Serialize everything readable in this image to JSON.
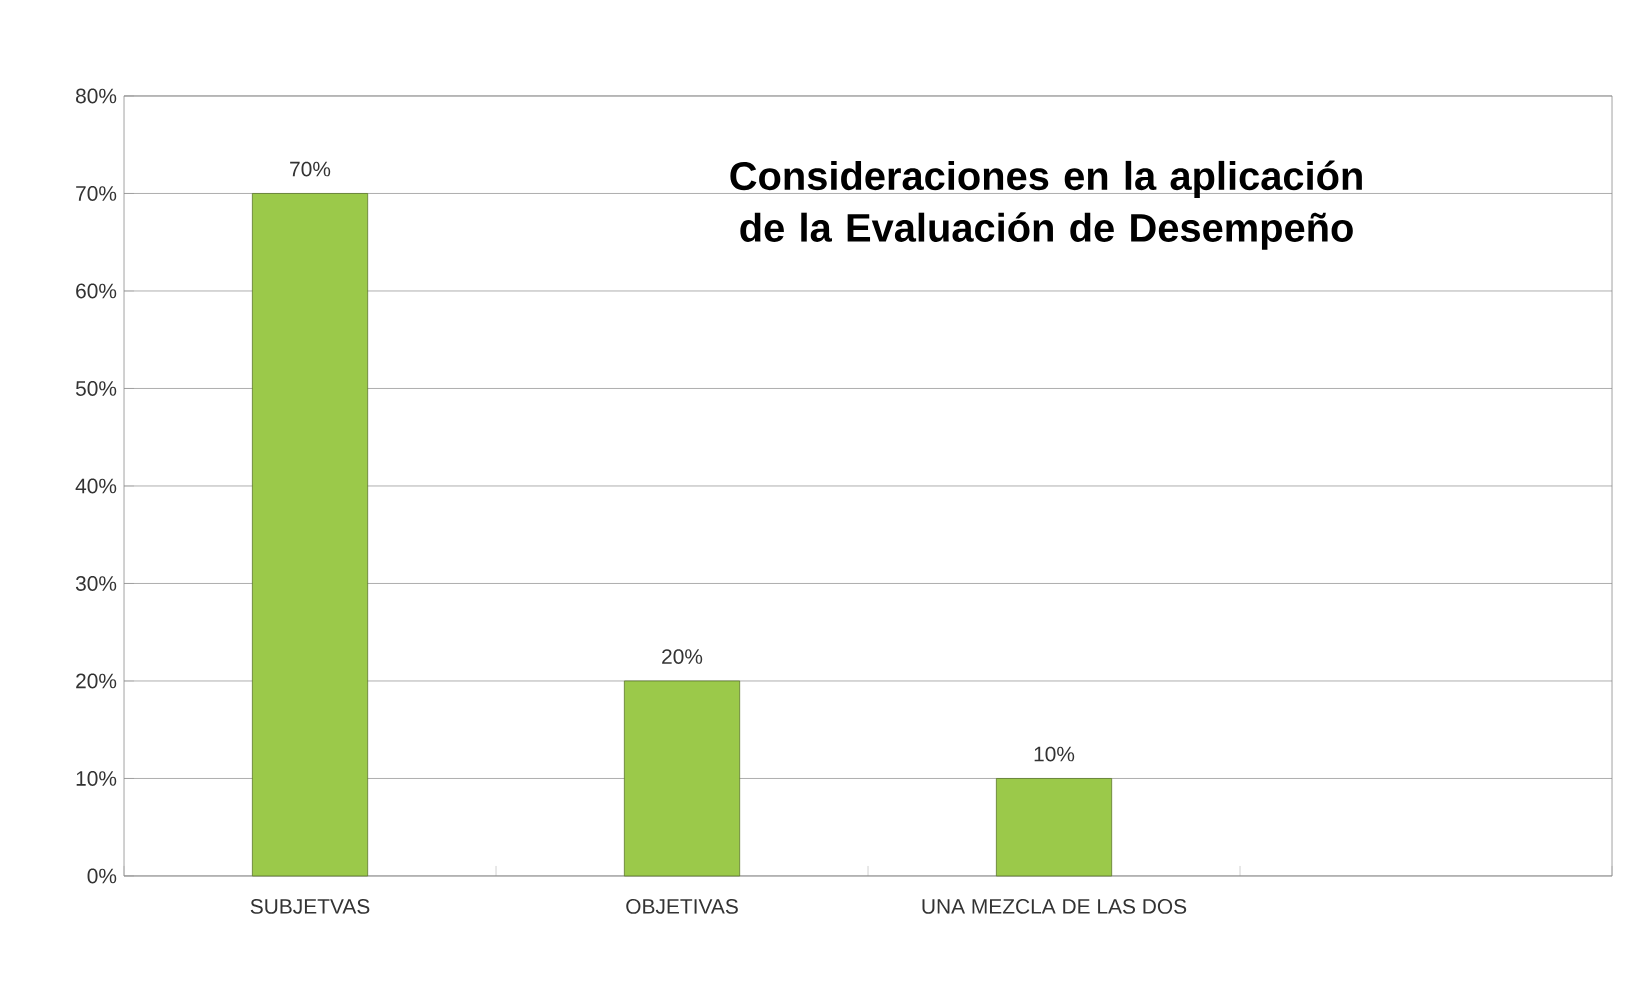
{
  "chart_data": {
    "type": "bar",
    "title": "Consideraciones en la aplicación de la Evaluación de Desempeño",
    "categories": [
      "SUBJETVAS",
      "OBJETIVAS",
      "UNA MEZCLA DE LAS DOS",
      null
    ],
    "values": [
      70,
      20,
      10,
      null
    ],
    "value_labels": [
      "70%",
      "20%",
      "10%",
      null
    ],
    "color": "#9bc94a",
    "ylim": [
      0,
      80
    ],
    "yticks": [
      {
        "value": 0,
        "label": "0%"
      },
      {
        "value": 10,
        "label": "10%"
      },
      {
        "value": 20,
        "label": "20%"
      },
      {
        "value": 30,
        "label": "30%"
      },
      {
        "value": 40,
        "label": "40%"
      },
      {
        "value": 50,
        "label": "50%"
      },
      {
        "value": 60,
        "label": "60%"
      },
      {
        "value": 70,
        "label": "70%"
      },
      {
        "value": 80,
        "label": "80%"
      }
    ],
    "grid": "y"
  }
}
